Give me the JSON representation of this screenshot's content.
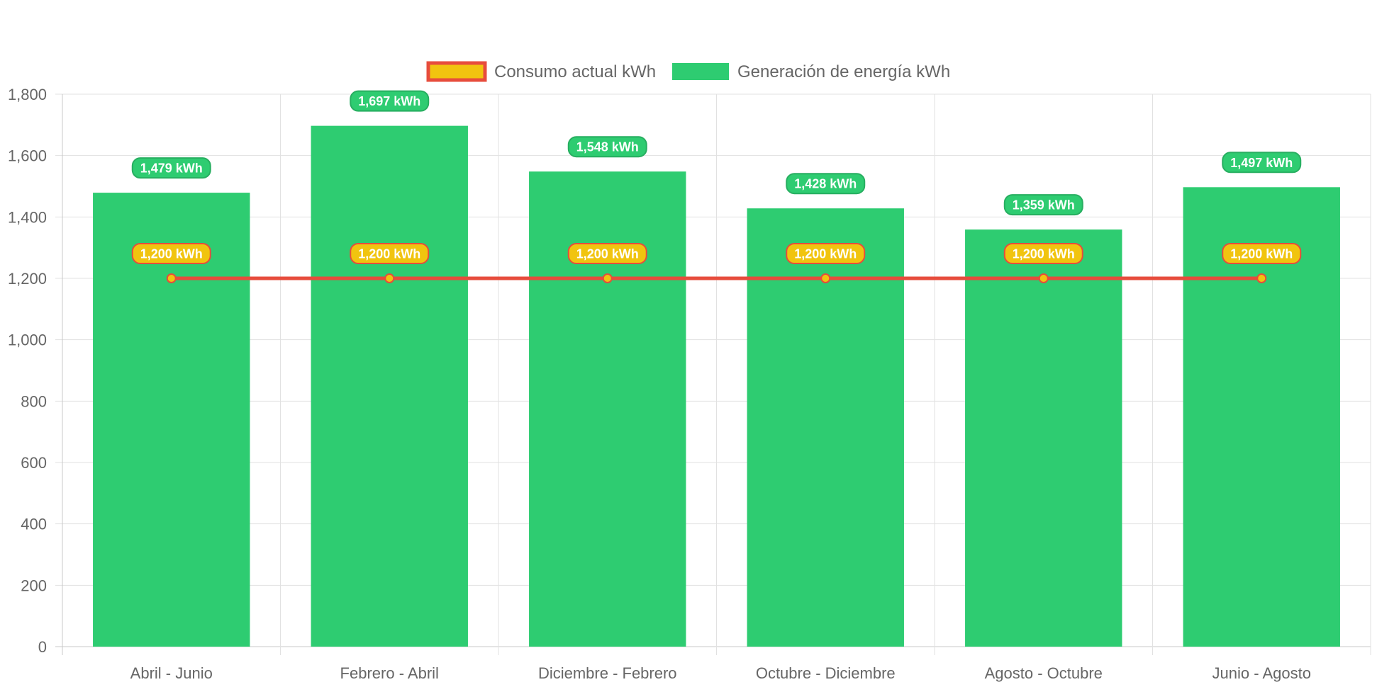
{
  "chart_data": {
    "type": "bar",
    "categories": [
      "Abril - Junio",
      "Febrero - Abril",
      "Diciembre - Febrero",
      "Octubre - Diciembre",
      "Agosto - Octubre",
      "Junio - Agosto"
    ],
    "series": [
      {
        "name": "Consumo actual kWh",
        "type": "line",
        "values": [
          1200,
          1200,
          1200,
          1200,
          1200,
          1200
        ],
        "labels": [
          "1,200 kWh",
          "1,200 kWh",
          "1,200 kWh",
          "1,200 kWh",
          "1,200 kWh",
          "1,200 kWh"
        ],
        "color": "#f1c40f",
        "border_color": "#e74c3c"
      },
      {
        "name": "Generación de energía kWh",
        "type": "bar",
        "values": [
          1479,
          1697,
          1548,
          1428,
          1359,
          1497
        ],
        "labels": [
          "1,479 kWh",
          "1,697 kWh",
          "1,548 kWh",
          "1,428 kWh",
          "1,359 kWh",
          "1,497 kWh"
        ],
        "color": "#2ecc71",
        "border_color": "#27ae60"
      }
    ],
    "yticks": [
      "0",
      "200",
      "400",
      "600",
      "800",
      "1,000",
      "1,200",
      "1,400",
      "1,600",
      "1,800"
    ],
    "ylim": [
      0,
      1800
    ],
    "grid": true,
    "legend_position": "top"
  }
}
